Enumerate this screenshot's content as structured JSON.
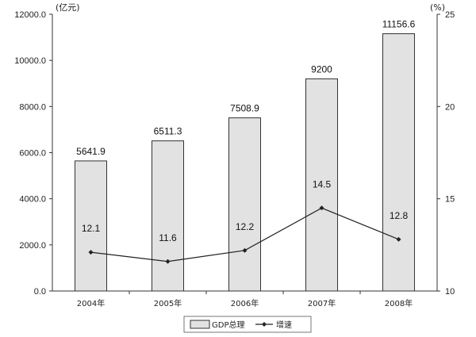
{
  "chart_data": {
    "type": "bar",
    "categories": [
      "2004年",
      "2005年",
      "2006年",
      "2007年",
      "2008年"
    ],
    "series": [
      {
        "name": "GDP总理",
        "type": "bar",
        "axis": "left",
        "values": [
          5641.9,
          6511.3,
          7508.9,
          9200,
          11156.6
        ],
        "labels": [
          "5641.9",
          "6511.3",
          "7508.9",
          "9200",
          "11156.6"
        ]
      },
      {
        "name": "增速",
        "type": "line",
        "axis": "right",
        "values": [
          12.1,
          11.6,
          12.2,
          14.5,
          12.8
        ],
        "labels": [
          "12.1",
          "11.6",
          "12.2",
          "14.5",
          "12.8"
        ]
      }
    ],
    "y_left": {
      "unit": "(亿元)",
      "ylim": [
        0,
        12000
      ],
      "ticks": [
        0,
        2000,
        4000,
        6000,
        8000,
        10000,
        12000
      ],
      "tick_labels": [
        "0.0",
        "2000.0",
        "4000.0",
        "6000.0",
        "8000.0",
        "10000.0",
        "12000.0"
      ]
    },
    "y_right": {
      "unit": "(%)",
      "ylim": [
        10,
        25
      ],
      "ticks": [
        10,
        15,
        20,
        25
      ],
      "tick_labels": [
        "10",
        "15",
        "20",
        "25"
      ]
    },
    "grid": false,
    "legend_position": "bottom-center",
    "colors": {
      "bar_fill": "#e2e2e2",
      "bar_stroke": "#333333",
      "line": "#222222",
      "axis": "#333333"
    }
  }
}
